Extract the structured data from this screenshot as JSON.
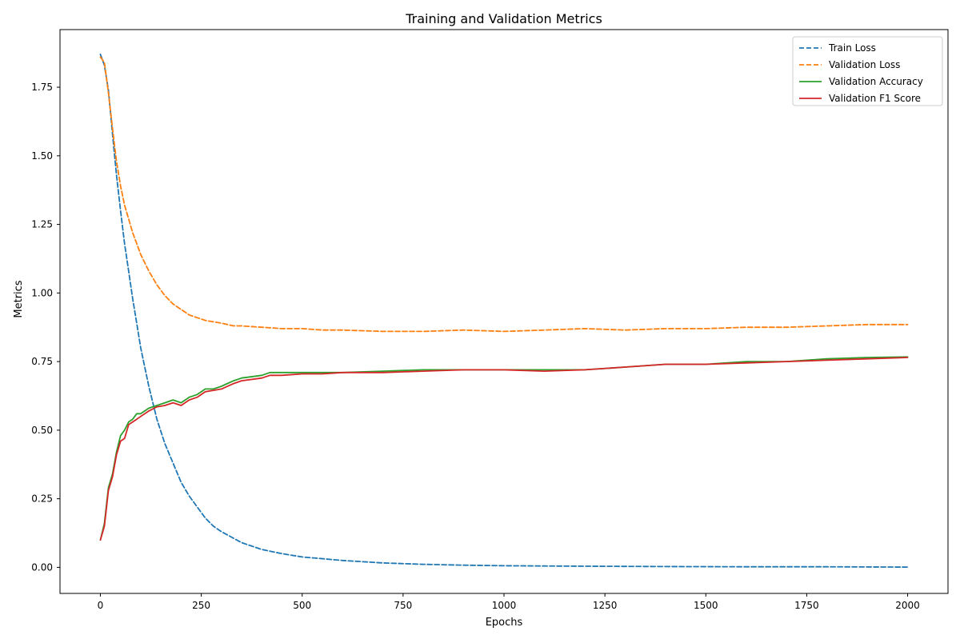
{
  "title": "Training and Validation Metrics",
  "colors": {
    "train_loss": "#1f77b4",
    "val_loss": "#ff7f0e",
    "val_acc": "#2ca02c",
    "val_f1": "#d62728"
  },
  "chart_data": {
    "type": "line",
    "title": "Training and Validation Metrics",
    "xlabel": "Epochs",
    "ylabel": "Metrics",
    "xlim": [
      -100,
      2100
    ],
    "ylim": [
      -0.095,
      1.96
    ],
    "grid": false,
    "legend_position": "top-right",
    "x_ticks": [
      0,
      250,
      500,
      750,
      1000,
      1250,
      1500,
      1750,
      2000
    ],
    "y_ticks": [
      0.0,
      0.25,
      0.5,
      0.75,
      1.0,
      1.25,
      1.5,
      1.75
    ],
    "x_tick_labels": [
      "0",
      "250",
      "500",
      "750",
      "1000",
      "1250",
      "1500",
      "1750",
      "2000"
    ],
    "y_tick_labels": [
      "0.00",
      "0.25",
      "0.50",
      "0.75",
      "1.00",
      "1.25",
      "1.50",
      "1.75"
    ],
    "series": [
      {
        "name": "Train Loss",
        "style": "dashed",
        "color": "#1f77b4",
        "x": [
          0,
          10,
          20,
          30,
          40,
          50,
          60,
          70,
          80,
          90,
          100,
          120,
          140,
          160,
          180,
          200,
          220,
          240,
          260,
          280,
          300,
          350,
          400,
          450,
          500,
          600,
          700,
          800,
          900,
          1000,
          1200,
          1400,
          1600,
          1800,
          2000
        ],
        "y": [
          1.87,
          1.83,
          1.74,
          1.58,
          1.43,
          1.3,
          1.18,
          1.08,
          0.98,
          0.89,
          0.8,
          0.66,
          0.54,
          0.45,
          0.38,
          0.31,
          0.26,
          0.22,
          0.18,
          0.15,
          0.13,
          0.09,
          0.065,
          0.05,
          0.038,
          0.025,
          0.016,
          0.011,
          0.008,
          0.006,
          0.004,
          0.003,
          0.002,
          0.002,
          0.001
        ]
      },
      {
        "name": "Validation Loss",
        "style": "dashed",
        "color": "#ff7f0e",
        "x": [
          0,
          10,
          20,
          30,
          40,
          50,
          60,
          70,
          80,
          90,
          100,
          120,
          140,
          160,
          180,
          200,
          220,
          240,
          260,
          280,
          300,
          330,
          350,
          400,
          450,
          500,
          550,
          600,
          700,
          800,
          900,
          1000,
          1100,
          1200,
          1300,
          1400,
          1500,
          1600,
          1700,
          1800,
          1900,
          2000
        ],
        "y": [
          1.86,
          1.84,
          1.73,
          1.6,
          1.48,
          1.39,
          1.32,
          1.27,
          1.22,
          1.18,
          1.14,
          1.08,
          1.03,
          0.99,
          0.96,
          0.94,
          0.92,
          0.91,
          0.9,
          0.895,
          0.89,
          0.88,
          0.88,
          0.875,
          0.87,
          0.87,
          0.865,
          0.865,
          0.86,
          0.86,
          0.865,
          0.86,
          0.865,
          0.87,
          0.865,
          0.87,
          0.87,
          0.875,
          0.875,
          0.88,
          0.885,
          0.885
        ]
      },
      {
        "name": "Validation Accuracy",
        "style": "solid",
        "color": "#2ca02c",
        "x": [
          0,
          10,
          20,
          30,
          40,
          50,
          60,
          70,
          80,
          90,
          100,
          120,
          140,
          160,
          180,
          200,
          220,
          240,
          260,
          280,
          300,
          330,
          350,
          400,
          420,
          450,
          500,
          550,
          600,
          700,
          800,
          900,
          1000,
          1100,
          1200,
          1300,
          1400,
          1500,
          1600,
          1700,
          1800,
          1900,
          2000
        ],
        "y": [
          0.1,
          0.16,
          0.29,
          0.34,
          0.42,
          0.48,
          0.5,
          0.53,
          0.54,
          0.56,
          0.56,
          0.58,
          0.59,
          0.6,
          0.61,
          0.6,
          0.62,
          0.63,
          0.65,
          0.65,
          0.66,
          0.68,
          0.69,
          0.7,
          0.71,
          0.71,
          0.71,
          0.71,
          0.71,
          0.715,
          0.72,
          0.72,
          0.72,
          0.72,
          0.72,
          0.73,
          0.74,
          0.74,
          0.75,
          0.75,
          0.76,
          0.765,
          0.767
        ]
      },
      {
        "name": "Validation F1 Score",
        "style": "solid",
        "color": "#d62728",
        "x": [
          0,
          10,
          20,
          30,
          40,
          50,
          60,
          70,
          80,
          90,
          100,
          120,
          140,
          160,
          180,
          200,
          220,
          240,
          260,
          280,
          300,
          330,
          350,
          400,
          420,
          450,
          500,
          550,
          600,
          700,
          800,
          900,
          1000,
          1100,
          1200,
          1300,
          1400,
          1500,
          1600,
          1700,
          1800,
          1900,
          2000
        ],
        "y": [
          0.1,
          0.15,
          0.28,
          0.33,
          0.41,
          0.46,
          0.47,
          0.52,
          0.53,
          0.54,
          0.55,
          0.57,
          0.585,
          0.59,
          0.6,
          0.59,
          0.61,
          0.62,
          0.64,
          0.645,
          0.65,
          0.67,
          0.68,
          0.69,
          0.7,
          0.7,
          0.705,
          0.705,
          0.71,
          0.71,
          0.715,
          0.72,
          0.72,
          0.715,
          0.72,
          0.73,
          0.74,
          0.74,
          0.745,
          0.75,
          0.755,
          0.76,
          0.765
        ]
      }
    ]
  }
}
